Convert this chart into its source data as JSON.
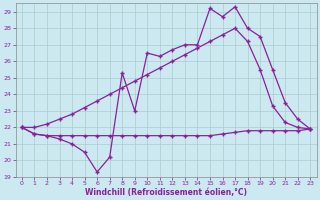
{
  "xlabel": "Windchill (Refroidissement éolien,°C)",
  "background_color": "#cce8f0",
  "grid_color": "#aacccc",
  "line_color": "#882299",
  "xlim": [
    -0.5,
    23.5
  ],
  "ylim": [
    19,
    29.5
  ],
  "yticks": [
    19,
    20,
    21,
    22,
    23,
    24,
    25,
    26,
    27,
    28,
    29
  ],
  "xticks": [
    0,
    1,
    2,
    3,
    4,
    5,
    6,
    7,
    8,
    9,
    10,
    11,
    12,
    13,
    14,
    15,
    16,
    17,
    18,
    19,
    20,
    21,
    22,
    23
  ],
  "line_flat_x": [
    0,
    1,
    2,
    3,
    4,
    5,
    6,
    7,
    8,
    9,
    10,
    11,
    12,
    13,
    14,
    15,
    16,
    17,
    18,
    19,
    20,
    21,
    22,
    23
  ],
  "line_flat_y": [
    22.0,
    21.6,
    21.5,
    21.5,
    21.5,
    21.5,
    21.5,
    21.5,
    21.5,
    21.5,
    21.5,
    21.5,
    21.5,
    21.5,
    21.5,
    21.5,
    21.6,
    21.7,
    21.8,
    21.8,
    21.8,
    21.8,
    21.8,
    21.9
  ],
  "line_diagonal_x": [
    0,
    1,
    2,
    3,
    4,
    5,
    6,
    7,
    8,
    9,
    10,
    11,
    12,
    13,
    14,
    15,
    16,
    17,
    18,
    19,
    20,
    21,
    22,
    23
  ],
  "line_diagonal_y": [
    22.0,
    22.0,
    22.2,
    22.5,
    22.8,
    23.2,
    23.6,
    24.0,
    24.4,
    24.8,
    25.2,
    25.6,
    26.0,
    26.4,
    26.8,
    27.2,
    27.6,
    28.0,
    27.2,
    25.5,
    23.3,
    22.3,
    22.0,
    21.9
  ],
  "line_jagged_x": [
    0,
    1,
    2,
    3,
    4,
    5,
    6,
    7,
    8,
    9,
    10,
    11,
    12,
    13,
    14,
    15,
    16,
    17,
    18,
    19,
    20,
    21,
    22,
    23
  ],
  "line_jagged_y": [
    22.0,
    21.6,
    21.5,
    21.3,
    21.0,
    20.5,
    19.3,
    20.2,
    25.3,
    23.0,
    26.5,
    26.3,
    26.7,
    27.0,
    27.0,
    29.2,
    28.7,
    29.3,
    28.0,
    27.5,
    25.5,
    23.5,
    22.5,
    21.9
  ],
  "marker": "+",
  "markersize": 3,
  "linewidth": 0.9
}
